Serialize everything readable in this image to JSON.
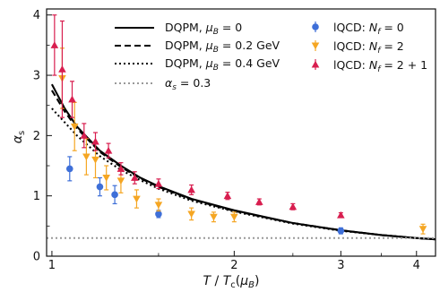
{
  "chart_data": {
    "type": "scatter",
    "title": "",
    "xlabel": "T/T_c(μ_B)",
    "ylabel": "α_s",
    "xscale": "log",
    "xlim": [
      0.98,
      4.3
    ],
    "ylim": [
      0,
      4.1
    ],
    "x_ticks": [
      1,
      2,
      3,
      4
    ],
    "y_ticks": [
      0,
      1,
      2,
      3,
      4
    ],
    "grid": false,
    "legend_placement": "top",
    "lines": [
      {
        "name": "DQPM, μ_B = 0",
        "style": "solid",
        "color": "#000000",
        "x": [
          1.0,
          1.05,
          1.1,
          1.2,
          1.3,
          1.4,
          1.5,
          1.7,
          2.0,
          2.5,
          3.0,
          3.5,
          4.0,
          4.3
        ],
        "y": [
          2.85,
          2.45,
          2.15,
          1.75,
          1.5,
          1.3,
          1.16,
          0.95,
          0.76,
          0.55,
          0.43,
          0.35,
          0.3,
          0.28
        ]
      },
      {
        "name": "DQPM, μ_B = 0.2 GeV",
        "style": "dashed",
        "color": "#000000",
        "x": [
          1.0,
          1.05,
          1.1,
          1.2,
          1.3,
          1.4,
          1.5,
          1.7,
          2.0,
          2.5,
          3.0,
          3.5,
          4.0,
          4.3
        ],
        "y": [
          2.75,
          2.4,
          2.12,
          1.73,
          1.48,
          1.29,
          1.15,
          0.94,
          0.75,
          0.55,
          0.43,
          0.35,
          0.3,
          0.28
        ]
      },
      {
        "name": "DQPM, μ_B = 0.4 GeV",
        "style": "dotted",
        "color": "#000000",
        "x": [
          1.0,
          1.05,
          1.1,
          1.2,
          1.3,
          1.4,
          1.5,
          1.7,
          2.0,
          2.5,
          3.0,
          3.5,
          4.0,
          4.3
        ],
        "y": [
          2.45,
          2.22,
          2.0,
          1.66,
          1.43,
          1.26,
          1.12,
          0.92,
          0.74,
          0.54,
          0.42,
          0.35,
          0.3,
          0.28
        ]
      },
      {
        "name": "α_s = 0.3",
        "style": "dotted",
        "color": "#999999",
        "x": [
          0.98,
          4.3
        ],
        "y": [
          0.3,
          0.3
        ]
      }
    ],
    "series": [
      {
        "name": "lQCD: N_f = 0",
        "marker": "circle",
        "color": "#3e6fd8",
        "x": [
          1.07,
          1.2,
          1.27,
          1.5,
          3.0
        ],
        "y": [
          1.45,
          1.15,
          1.02,
          0.7,
          0.42
        ],
        "err": [
          0.2,
          0.15,
          0.15,
          0.06,
          0.05
        ]
      },
      {
        "name": "lQCD: N_f = 2",
        "marker": "triangle-down",
        "color": "#f5a623",
        "x": [
          1.04,
          1.09,
          1.14,
          1.18,
          1.23,
          1.3,
          1.38,
          1.5,
          1.7,
          1.85,
          2.0,
          4.1
        ],
        "y": [
          2.95,
          2.15,
          1.65,
          1.6,
          1.3,
          1.25,
          0.95,
          0.85,
          0.7,
          0.65,
          0.65,
          0.45
        ],
        "err": [
          0.5,
          0.4,
          0.3,
          0.3,
          0.2,
          0.2,
          0.15,
          0.1,
          0.1,
          0.08,
          0.08,
          0.08
        ]
      },
      {
        "name": "lQCD: N_f = 2 + 1",
        "marker": "triangle-up",
        "color": "#d81e4f",
        "x": [
          1.01,
          1.04,
          1.08,
          1.13,
          1.18,
          1.24,
          1.3,
          1.37,
          1.5,
          1.7,
          1.95,
          2.2,
          2.5,
          3.0
        ],
        "y": [
          3.5,
          3.1,
          2.6,
          2.0,
          1.9,
          1.75,
          1.45,
          1.3,
          1.2,
          1.1,
          1.0,
          0.9,
          0.82,
          0.68
        ],
        "err": [
          0.5,
          0.8,
          0.3,
          0.2,
          0.15,
          0.12,
          0.1,
          0.1,
          0.08,
          0.08,
          0.06,
          0.05,
          0.05,
          0.04
        ]
      }
    ],
    "legend_left": [
      {
        "prefix": "DQPM, ",
        "sym": "μ",
        "sub": "B",
        "suffix": " = 0"
      },
      {
        "prefix": "DQPM, ",
        "sym": "μ",
        "sub": "B",
        "suffix": " = 0.2 GeV"
      },
      {
        "prefix": "DQPM, ",
        "sym": "μ",
        "sub": "B",
        "suffix": " = 0.4 GeV"
      },
      {
        "prefix": "",
        "sym": "α",
        "sub": "s",
        "suffix": " = 0.3"
      }
    ],
    "legend_right": [
      {
        "prefix": "lQCD: ",
        "sym": "N",
        "sub": "f",
        "suffix": " = 0"
      },
      {
        "prefix": "lQCD: ",
        "sym": "N",
        "sub": "f",
        "suffix": " = 2"
      },
      {
        "prefix": "lQCD: ",
        "sym": "N",
        "sub": "f",
        "suffix": " = 2 + 1"
      }
    ]
  }
}
